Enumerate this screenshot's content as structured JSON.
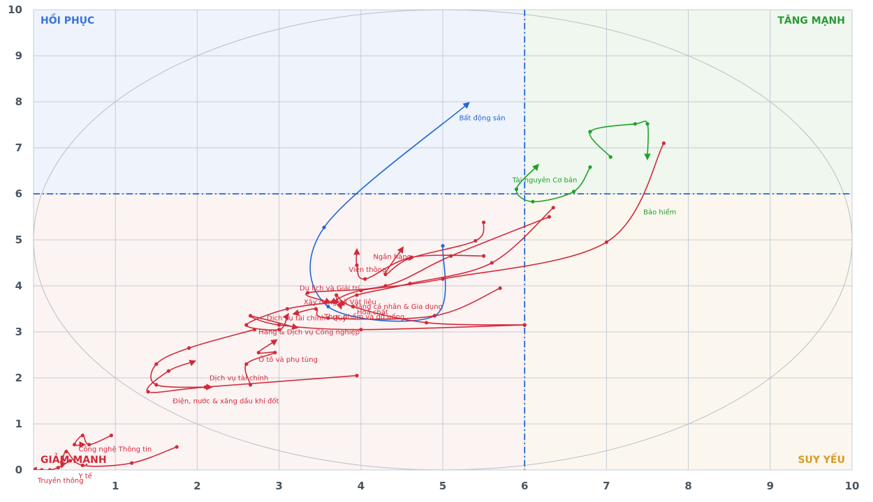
{
  "chart_data": {
    "type": "scatter",
    "title": "",
    "xlabel": "",
    "ylabel": "",
    "xlim": [
      0,
      10
    ],
    "ylim": [
      0,
      10
    ],
    "x_ticks": [
      "1",
      "2",
      "3",
      "4",
      "5",
      "6",
      "7",
      "8",
      "9",
      "10"
    ],
    "y_ticks": [
      "0",
      "1",
      "2",
      "3",
      "4",
      "5",
      "6",
      "7",
      "8",
      "9",
      "10"
    ],
    "grid": true,
    "threshold_x": 6,
    "threshold_y": 6,
    "quadrants": [
      {
        "key": "top-left",
        "label": "HỒI PHỤC",
        "fill": "#eef3fc",
        "text_color": "#3a74d8"
      },
      {
        "key": "top-right",
        "label": "TĂNG MẠNH",
        "fill": "#eff7ee",
        "text_color": "#2a9a3a"
      },
      {
        "key": "bottom-left",
        "label": "GIẢM MẠNH",
        "fill": "#fcf3f3",
        "text_color": "#d02b3a"
      },
      {
        "key": "bottom-right",
        "label": "SUY YẾU",
        "fill": "#fbf7ef",
        "text_color": "#d99a24"
      }
    ],
    "colors": {
      "red": "#d02b3a",
      "green": "#1ea22a",
      "blue": "#2266d6",
      "dashed": "#2266d6",
      "grid": "#c5ccd4"
    },
    "series": [
      {
        "name": "Bất động sản",
        "color": "#2266d6",
        "label_at": [
          5.2,
          7.6
        ],
        "points": [
          [
            5.0,
            4.87
          ],
          [
            4.9,
            3.35
          ],
          [
            3.6,
            3.55
          ],
          [
            3.55,
            5.27
          ],
          [
            5.3,
            7.95
          ]
        ]
      },
      {
        "name": "Bảo hiểm",
        "color": "#1ea22a",
        "label_at": [
          7.45,
          5.55
        ],
        "points": [
          [
            7.05,
            6.8
          ],
          [
            6.8,
            7.35
          ],
          [
            7.35,
            7.52
          ],
          [
            7.5,
            7.52
          ],
          [
            7.5,
            6.8
          ]
        ]
      },
      {
        "name": "Tài nguyên Cơ bản",
        "color": "#1ea22a",
        "label_at": [
          5.85,
          6.25
        ],
        "points": [
          [
            6.8,
            6.58
          ],
          [
            6.6,
            6.05
          ],
          [
            6.1,
            5.83
          ],
          [
            5.9,
            6.1
          ],
          [
            6.15,
            6.6
          ]
        ]
      },
      {
        "name": "Ngân hàng",
        "color": "#d02b3a",
        "label_at": [
          4.15,
          4.58
        ],
        "points": [
          [
            5.5,
            5.38
          ],
          [
            5.4,
            4.98
          ],
          [
            4.6,
            4.6
          ],
          [
            4.3,
            4.25
          ],
          [
            4.5,
            4.8
          ]
        ]
      },
      {
        "name": "Viễn thông",
        "color": "#d02b3a",
        "label_at": [
          3.85,
          4.3
        ],
        "points": [
          [
            5.5,
            4.65
          ],
          [
            4.62,
            4.62
          ],
          [
            4.05,
            4.15
          ],
          [
            3.95,
            4.45
          ],
          [
            3.95,
            4.75
          ]
        ]
      },
      {
        "name": "Du lịch và Giải trí",
        "color": "#d02b3a",
        "label_at": [
          3.25,
          3.9
        ],
        "points": [
          [
            6.3,
            5.5
          ],
          [
            5.1,
            4.65
          ],
          [
            4.3,
            4.0
          ],
          [
            3.35,
            3.85
          ],
          [
            3.6,
            3.65
          ]
        ]
      },
      {
        "name": "Xây dựng và Vật liệu",
        "color": "#d02b3a",
        "label_at": [
          3.3,
          3.6
        ],
        "points": [
          [
            6.35,
            5.7
          ],
          [
            5.6,
            4.5
          ],
          [
            4.6,
            4.05
          ],
          [
            3.95,
            3.8
          ],
          [
            3.75,
            3.6
          ]
        ]
      },
      {
        "name": "Hàng cá nhân & Gia dụng",
        "color": "#d02b3a",
        "label_at": [
          3.9,
          3.5
        ],
        "points": [
          [
            7.7,
            7.1
          ],
          [
            7.0,
            4.95
          ],
          [
            5.0,
            4.15
          ],
          [
            4.0,
            3.9
          ],
          [
            3.65,
            3.65
          ]
        ]
      },
      {
        "name": "Hoá chất",
        "color": "#d02b3a",
        "label_at": [
          3.95,
          3.38
        ],
        "points": [
          [
            6.0,
            3.15
          ],
          [
            4.8,
            3.2
          ],
          [
            3.9,
            3.55
          ],
          [
            3.7,
            3.8
          ],
          [
            3.75,
            3.55
          ]
        ]
      },
      {
        "name": "Thực phẩm và đồ uống",
        "color": "#d02b3a",
        "label_at": [
          3.55,
          3.28
        ],
        "points": [
          [
            5.7,
            3.95
          ],
          [
            4.9,
            3.35
          ],
          [
            3.6,
            3.3
          ],
          [
            3.45,
            3.5
          ],
          [
            3.2,
            3.4
          ]
        ]
      },
      {
        "name": "Dịch vụ tài chính",
        "color": "#d02b3a",
        "label_at": [
          2.15,
          1.95
        ],
        "points": [
          [
            3.95,
            2.05
          ],
          [
            2.1,
            1.8
          ],
          [
            1.4,
            1.7
          ],
          [
            1.65,
            2.15
          ],
          [
            1.95,
            2.35
          ]
        ]
      },
      {
        "name": "Dịch vụ tài chính - Quỹ",
        "color": "#d02b3a",
        "label_at": [
          2.85,
          3.25
        ],
        "points": [
          [
            3.7,
            3.65
          ],
          [
            3.1,
            3.5
          ],
          [
            2.6,
            3.15
          ],
          [
            3.0,
            3.05
          ],
          [
            3.1,
            3.35
          ]
        ]
      },
      {
        "name": "Hàng & Dịch vụ Công nghiệp",
        "color": "#d02b3a",
        "label_at": [
          2.75,
          2.95
        ],
        "points": [
          [
            6.0,
            3.15
          ],
          [
            4.0,
            3.05
          ],
          [
            3.0,
            3.15
          ],
          [
            2.65,
            3.35
          ],
          [
            3.2,
            3.1
          ]
        ]
      },
      {
        "name": "Ô tô và phụ tùng",
        "color": "#d02b3a",
        "label_at": [
          2.75,
          2.35
        ],
        "points": [
          [
            2.65,
            1.85
          ],
          [
            2.6,
            2.3
          ],
          [
            2.95,
            2.55
          ],
          [
            2.75,
            2.55
          ],
          [
            2.95,
            2.8
          ]
        ]
      },
      {
        "name": "Điện, nước & xăng dầu khí đốt",
        "color": "#d02b3a",
        "label_at": [
          1.7,
          1.45
        ],
        "points": [
          [
            2.7,
            3.05
          ],
          [
            1.9,
            2.65
          ],
          [
            1.5,
            2.3
          ],
          [
            1.5,
            1.85
          ],
          [
            2.15,
            1.8
          ]
        ]
      },
      {
        "name": "Công nghệ Thông tin",
        "color": "#d02b3a",
        "label_at": [
          0.55,
          0.4
        ],
        "points": [
          [
            0.95,
            0.75
          ],
          [
            0.68,
            0.55
          ],
          [
            0.6,
            0.75
          ],
          [
            0.5,
            0.55
          ],
          [
            0.6,
            0.55
          ]
        ]
      },
      {
        "name": "Truyền thông",
        "color": "#d02b3a",
        "label_at": [
          0.05,
          -0.28
        ],
        "points": [
          [
            0.45,
            0.2
          ],
          [
            0.3,
            0.05
          ],
          [
            0.2,
            0.0
          ],
          [
            0.1,
            0.0
          ],
          [
            0.0,
            0.0
          ]
        ]
      },
      {
        "name": "Y tế",
        "color": "#d02b3a",
        "label_at": [
          0.55,
          -0.18
        ],
        "points": [
          [
            1.75,
            0.5
          ],
          [
            1.2,
            0.15
          ],
          [
            0.6,
            0.1
          ],
          [
            0.4,
            0.4
          ],
          [
            0.35,
            0.1
          ]
        ]
      }
    ]
  }
}
